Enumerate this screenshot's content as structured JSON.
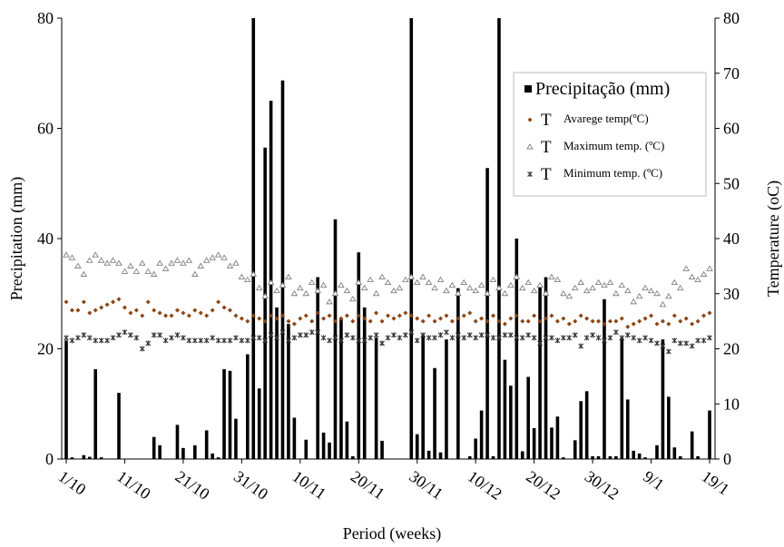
{
  "chart_data": {
    "type": "combo",
    "x_label": "Period (weeks)",
    "y_label": "Precipitation (mm)",
    "y2_label": "Temperature (oC)",
    "categories": [
      "1/10",
      null,
      null,
      null,
      null,
      null,
      null,
      null,
      null,
      null,
      "11/10",
      null,
      null,
      null,
      null,
      null,
      null,
      null,
      null,
      null,
      "21/10",
      null,
      null,
      null,
      null,
      null,
      null,
      null,
      null,
      null,
      "31/10",
      null,
      null,
      null,
      null,
      null,
      null,
      null,
      null,
      null,
      "10/11",
      null,
      null,
      null,
      null,
      null,
      null,
      null,
      null,
      null,
      "20/11",
      null,
      null,
      null,
      null,
      null,
      null,
      null,
      null,
      null,
      "30/11",
      null,
      null,
      null,
      null,
      null,
      null,
      null,
      null,
      null,
      "10/12",
      null,
      null,
      null,
      null,
      null,
      null,
      null,
      null,
      null,
      "20/12",
      null,
      null,
      null,
      null,
      null,
      null,
      null,
      null,
      null,
      "30/12",
      null,
      null,
      null,
      null,
      null,
      null,
      null,
      null,
      null,
      "9/1",
      null,
      null,
      null,
      null,
      null,
      null,
      null,
      null,
      null,
      "19/1"
    ],
    "ylim": [
      0,
      80
    ],
    "yticks": [
      0,
      20,
      40,
      60,
      80
    ],
    "y2lim": [
      0,
      80
    ],
    "y2ticks": [
      0,
      10,
      20,
      30,
      40,
      50,
      60,
      70,
      80
    ],
    "grid": false,
    "legend": "upper right",
    "series": [
      {
        "name": "Precipitação (mm)",
        "type": "bar",
        "color": "#000000",
        "values": [
          21.5,
          0.3,
          0,
          0.7,
          0.4,
          16.3,
          0.3,
          0,
          0,
          12,
          0,
          0,
          0,
          0,
          0,
          4,
          2.5,
          0,
          0,
          6.2,
          2,
          0,
          2.5,
          0,
          5.2,
          1,
          0.3,
          16.3,
          16,
          7.3,
          0,
          19,
          80,
          12.8,
          56.5,
          65,
          27.5,
          68.7,
          24.5,
          7.5,
          0,
          3.5,
          0,
          33,
          4.8,
          3,
          43.5,
          25.5,
          6.8,
          0.5,
          37.5,
          27.5,
          0,
          22,
          3.3,
          0,
          0,
          0,
          0,
          80,
          4.5,
          22.5,
          1.5,
          16.5,
          1.2,
          21.7,
          0,
          31,
          0,
          0.5,
          3.7,
          8.8,
          52.8,
          0.5,
          80,
          18,
          13.3,
          40,
          1.4,
          14.9,
          5.6,
          31.2,
          33,
          5.7,
          7.7,
          0.3,
          0,
          3.4,
          10.5,
          12.3,
          0.5,
          0.5,
          29,
          0.5,
          0.5,
          22,
          10.8,
          1.5,
          1,
          0.3,
          0,
          2.5,
          21.7,
          11.3,
          2.1,
          0.5,
          0,
          5,
          0.5,
          0,
          8.8
        ]
      },
      {
        "name": "Avarege temp(ºC)",
        "marker_label": "T",
        "type": "scatter",
        "marker": "diamond",
        "color": "#8b4513",
        "axis": "y2",
        "values": [
          28.5,
          27,
          27,
          28.5,
          26.5,
          27,
          27.5,
          28,
          28.5,
          29,
          27.5,
          26.5,
          27,
          26,
          28.5,
          27,
          26.5,
          26,
          26,
          27,
          26.5,
          26,
          27,
          26.5,
          26,
          27,
          28.5,
          27.5,
          27,
          26,
          25.5,
          25,
          26,
          25.5,
          25,
          26,
          25.5,
          26,
          25,
          24.5,
          25.5,
          26,
          25,
          26.5,
          25.5,
          26,
          25,
          25.5,
          26,
          25,
          26,
          25.5,
          25,
          26.5,
          25,
          26,
          25.5,
          26,
          26.5,
          26,
          25.5,
          25,
          26,
          25,
          25.5,
          26,
          25,
          25.5,
          26,
          26.5,
          25,
          25.5,
          25,
          26,
          25,
          24.5,
          25.5,
          26,
          25,
          25,
          26,
          25,
          25.5,
          26,
          25,
          25.5,
          24.5,
          25,
          26,
          25.5,
          25,
          25,
          24.5,
          25,
          25,
          25.5,
          24,
          24.5,
          25,
          25.5,
          26,
          24.5,
          25,
          24.5,
          26,
          25,
          25.5,
          24.5,
          25,
          26,
          26.5
        ]
      },
      {
        "name": "Maximum temp. (ºC)",
        "marker_label": "T",
        "type": "scatter",
        "marker": "triangle",
        "color": "#808080",
        "axis": "y2",
        "values": [
          37,
          36.5,
          35,
          33.5,
          36,
          37,
          36,
          35.5,
          36,
          35.5,
          34,
          35,
          34,
          35.5,
          34,
          33.5,
          35.5,
          34.5,
          35.5,
          36,
          35.5,
          36,
          33.5,
          35,
          36,
          36.5,
          37,
          36.5,
          35,
          35.5,
          33,
          32.5,
          33.5,
          31,
          29.5,
          32,
          30.5,
          31.5,
          33,
          30,
          31,
          30,
          32,
          30.5,
          31.5,
          28.5,
          30,
          31.5,
          30.5,
          29,
          32,
          31,
          32.5,
          30,
          33,
          32,
          30.5,
          31,
          32.5,
          33,
          32,
          33,
          32,
          31,
          32.5,
          30.5,
          31.5,
          30,
          32,
          31,
          30.5,
          31.5,
          30,
          32.5,
          31,
          30,
          31.5,
          33,
          31,
          32,
          30.5,
          31.5,
          30,
          33,
          32.5,
          30,
          29.5,
          31,
          32,
          30.5,
          31,
          32,
          31.5,
          32,
          30,
          31.5,
          30.5,
          28.5,
          29.5,
          31,
          30.5,
          30,
          28,
          29.5,
          32,
          31,
          34.5,
          33,
          32.5,
          33.5,
          34.5
        ]
      },
      {
        "name": "Minimum temp. (ºC)",
        "marker_label": "T",
        "type": "scatter",
        "marker": "star",
        "color": "#333333",
        "axis": "y2",
        "values": [
          22,
          21.5,
          22,
          22.5,
          22,
          21.5,
          21.5,
          21.5,
          22,
          22.5,
          23,
          22.5,
          22,
          20,
          21,
          22.5,
          22.5,
          21.5,
          22,
          22.5,
          22,
          21.5,
          21.5,
          21.5,
          21.5,
          22,
          21.5,
          21.5,
          21.5,
          22,
          21.5,
          21.5,
          22,
          22,
          21.5,
          22.5,
          22,
          23,
          21.5,
          22,
          22.5,
          22.5,
          23,
          23,
          22,
          21.5,
          22,
          21.5,
          22.5,
          22,
          21.5,
          21.5,
          22,
          22.5,
          21,
          22,
          22.5,
          22,
          22.5,
          23,
          21.5,
          22.5,
          22,
          22,
          22.5,
          23,
          22,
          22.5,
          22,
          22.5,
          22,
          22.5,
          22.5,
          22,
          22,
          22.5,
          22.5,
          22,
          22,
          22.5,
          22,
          21,
          22,
          22,
          21.5,
          22,
          22,
          22.5,
          20.5,
          22,
          22.5,
          22,
          21.5,
          22,
          23,
          22,
          22.5,
          22,
          21.5,
          22,
          21.5,
          21,
          20.5,
          19.5,
          21.5,
          21,
          21,
          20.5,
          21.5,
          21.5,
          22
        ]
      }
    ]
  }
}
